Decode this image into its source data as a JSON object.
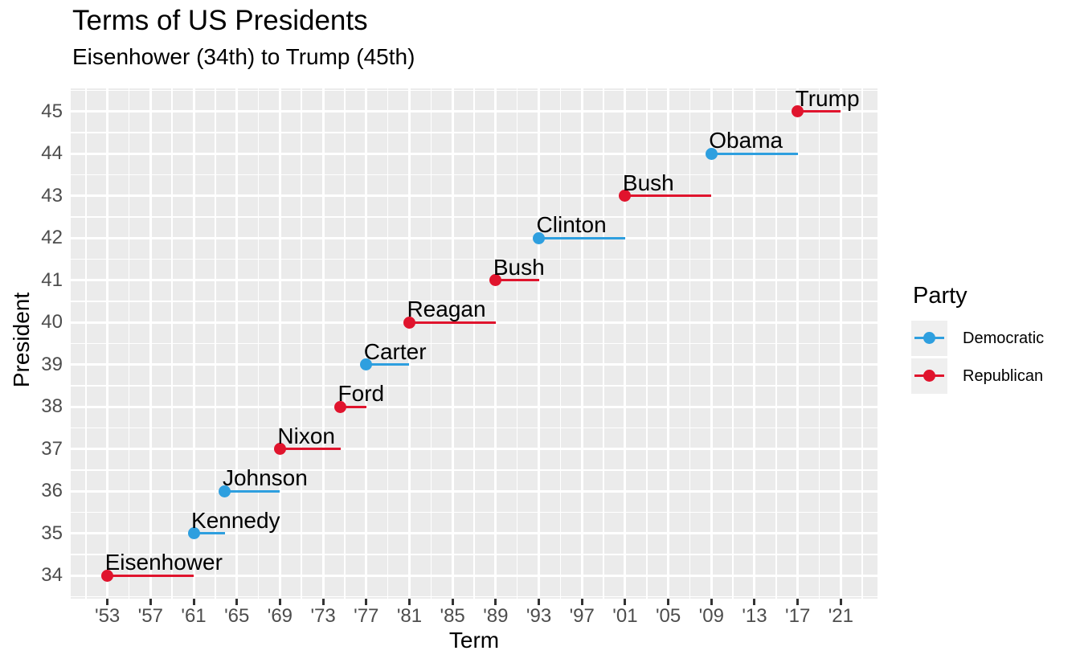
{
  "header": {
    "title": "Terms of US Presidents",
    "subtitle": "Eisenhower (34th) to Trump (45th)"
  },
  "chart_data": {
    "type": "line",
    "subtype": "horizontal-term-segments-with-start-dot",
    "title": "Terms of US Presidents",
    "subtitle": "Eisenhower (34th) to Trump (45th)",
    "xlabel": "Term",
    "ylabel": "President",
    "xlim": [
      1949.6,
      2024.4
    ],
    "ylim": [
      33.45,
      45.55
    ],
    "grid": "major-and-minor, white on grey panel",
    "x_ticks": {
      "years": [
        1953,
        1957,
        1961,
        1965,
        1969,
        1973,
        1977,
        1981,
        1985,
        1989,
        1993,
        1997,
        2001,
        2005,
        2009,
        2013,
        2017,
        2021
      ],
      "labels": [
        "'53",
        "'57",
        "'61",
        "'65",
        "'69",
        "'73",
        "'77",
        "'81",
        "'85",
        "'89",
        "'93",
        "'97",
        "'01",
        "'05",
        "'09",
        "'13",
        "'17",
        "'21"
      ]
    },
    "y_ticks": [
      34,
      35,
      36,
      37,
      38,
      39,
      40,
      41,
      42,
      43,
      44,
      45
    ],
    "presidents": [
      {
        "number": 34,
        "name": "Eisenhower",
        "party": "Republican",
        "start": 1953,
        "end": 1961
      },
      {
        "number": 35,
        "name": "Kennedy",
        "party": "Democratic",
        "start": 1961,
        "end": 1963.9
      },
      {
        "number": 36,
        "name": "Johnson",
        "party": "Democratic",
        "start": 1963.9,
        "end": 1969
      },
      {
        "number": 37,
        "name": "Nixon",
        "party": "Republican",
        "start": 1969,
        "end": 1974.6
      },
      {
        "number": 38,
        "name": "Ford",
        "party": "Republican",
        "start": 1974.6,
        "end": 1977
      },
      {
        "number": 39,
        "name": "Carter",
        "party": "Democratic",
        "start": 1977,
        "end": 1981
      },
      {
        "number": 40,
        "name": "Reagan",
        "party": "Republican",
        "start": 1981,
        "end": 1989
      },
      {
        "number": 41,
        "name": "Bush",
        "party": "Republican",
        "start": 1989,
        "end": 1993
      },
      {
        "number": 42,
        "name": "Clinton",
        "party": "Democratic",
        "start": 1993,
        "end": 2001
      },
      {
        "number": 43,
        "name": "Bush",
        "party": "Republican",
        "start": 2001,
        "end": 2009
      },
      {
        "number": 44,
        "name": "Obama",
        "party": "Democratic",
        "start": 2009,
        "end": 2017
      },
      {
        "number": 45,
        "name": "Trump",
        "party": "Republican",
        "start": 2017,
        "end": 2021
      }
    ],
    "party_colors": {
      "Democratic": "#2E9FDF",
      "Republican": "#E0142D"
    },
    "legend": {
      "title": "Party",
      "position": "right",
      "entries": [
        "Democratic",
        "Republican"
      ]
    },
    "style": {
      "panel_bg": "#EBEBEB",
      "grid_color": "#FFFFFF",
      "tick_label_color": "#4D4D4D",
      "axis_tick_color": "#333333",
      "legend_key_bg": "#EFEFEF",
      "text_color": "#000000"
    }
  }
}
